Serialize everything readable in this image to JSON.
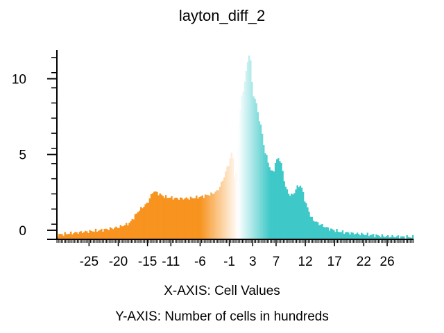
{
  "chart_data": {
    "type": "bar",
    "title": "layton_diff_2",
    "xlabel": "X-AXIS: Cell Values",
    "ylabel": "Y-AXIS: Number of cells in hundreds",
    "xlim": [
      -30.5,
      30.5
    ],
    "ylim": [
      -0.6,
      11.9
    ],
    "grid": false,
    "legend": "none",
    "x_tick_values": [
      -25,
      -20,
      -15,
      -11,
      -6,
      -1,
      3,
      7,
      12,
      17,
      22,
      26
    ],
    "x_tick_labels": [
      "-25",
      "-20",
      "-15",
      "-11",
      "-6",
      "-1",
      "3",
      "7",
      "12",
      "17",
      "22",
      "26"
    ],
    "y_tick_values": [
      0,
      5,
      10
    ],
    "y_tick_labels": [
      "0",
      "5",
      "10"
    ],
    "color_low": "#f7931e",
    "color_mid": "#ffffff",
    "color_high": "#3ec8c8",
    "profile_x": [
      -30.5,
      -27,
      -23,
      -20,
      -18.5,
      -18,
      -16.5,
      -15,
      -14,
      -12,
      -10,
      -8,
      -6,
      -4,
      -3,
      -2,
      -1.5,
      -1,
      -0.5,
      0,
      0.3,
      0.6,
      1,
      1.5,
      2,
      2.5,
      3,
      3.5,
      4,
      4.5,
      5,
      5.5,
      6,
      6.5,
      7,
      7.5,
      8,
      8.5,
      9,
      9.5,
      10,
      10.5,
      11,
      11.5,
      12,
      12.5,
      13,
      14,
      15,
      16,
      18,
      20,
      23,
      26,
      30.5
    ],
    "profile_y": [
      -0.3,
      -0.15,
      0.0,
      0.2,
      0.4,
      0.5,
      1.3,
      1.8,
      2.6,
      2.2,
      2.1,
      2.1,
      2.2,
      2.4,
      2.6,
      3.4,
      4.0,
      4.5,
      5.3,
      3.0,
      4.8,
      7.0,
      8.5,
      9.5,
      10.8,
      11.9,
      9.0,
      8.6,
      7.5,
      6.7,
      5.3,
      4.7,
      4.0,
      3.8,
      4.6,
      4.8,
      4.2,
      3.0,
      2.5,
      2.3,
      2.4,
      2.8,
      3.0,
      2.7,
      1.8,
      1.4,
      0.8,
      0.5,
      0.3,
      0.1,
      -0.1,
      -0.2,
      -0.3,
      -0.4,
      -0.45
    ]
  }
}
